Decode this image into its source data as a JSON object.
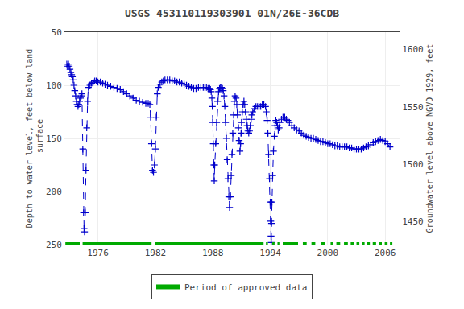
{
  "chart_data": {
    "type": "line",
    "title": "USGS 453110119303901 01N/26E-36CDB",
    "ylabel": "Depth to water level, feet below land\n surface",
    "y2label": "Groundwater level above NGVD 1929, feet",
    "xlim": [
      1972.5,
      2007.5
    ],
    "xticks": [
      1976,
      1982,
      1988,
      1994,
      2000,
      2006
    ],
    "ylim": [
      250,
      50
    ],
    "yticks": [
      50,
      100,
      150,
      200,
      250
    ],
    "y2lim": [
      1430,
      1615
    ],
    "y2ticks": [
      1450,
      1500,
      1550,
      1600
    ],
    "grid": true,
    "legend": "bottom",
    "series": [
      {
        "type": "line",
        "color": "#0000cc",
        "line_style": "dashed",
        "marker": "plus",
        "x": [
          1972.75,
          1972.83,
          1972.92,
          1973.0,
          1973.08,
          1973.17,
          1973.25,
          1973.33,
          1973.42,
          1973.5,
          1973.58,
          1973.67,
          1973.75,
          1973.83,
          1973.92,
          1974.0,
          1974.08,
          1974.17,
          1974.25,
          1974.33,
          1974.42,
          1974.5,
          1974.55,
          1974.6,
          1974.67,
          1974.75,
          1974.83,
          1974.92,
          1975.0,
          1975.17,
          1975.33,
          1975.5,
          1975.67,
          1975.83,
          1976.0,
          1976.25,
          1976.5,
          1976.75,
          1977.0,
          1977.33,
          1977.67,
          1978.0,
          1978.33,
          1978.67,
          1979.0,
          1979.33,
          1979.67,
          1980.0,
          1980.33,
          1980.67,
          1981.0,
          1981.25,
          1981.42,
          1981.5,
          1981.6,
          1981.7,
          1981.8,
          1981.9,
          1982.0,
          1982.1,
          1982.2,
          1982.3,
          1982.5,
          1982.67,
          1982.83,
          1983.0,
          1983.25,
          1983.5,
          1983.75,
          1984.0,
          1984.25,
          1984.5,
          1984.75,
          1985.0,
          1985.25,
          1985.5,
          1985.75,
          1986.0,
          1986.25,
          1986.5,
          1986.75,
          1987.0,
          1987.17,
          1987.33,
          1987.5,
          1987.67,
          1987.75,
          1987.83,
          1987.9,
          1987.95,
          1988.0,
          1988.05,
          1988.1,
          1988.15,
          1988.2,
          1988.3,
          1988.4,
          1988.5,
          1988.6,
          1988.7,
          1988.8,
          1988.9,
          1989.0,
          1989.08,
          1989.17,
          1989.25,
          1989.33,
          1989.42,
          1989.5,
          1989.58,
          1989.67,
          1989.75,
          1989.83,
          1989.92,
          1990.0,
          1990.08,
          1990.17,
          1990.25,
          1990.33,
          1990.42,
          1990.5,
          1990.58,
          1990.67,
          1990.75,
          1990.83,
          1990.9,
          1990.95,
          1991.0,
          1991.08,
          1991.17,
          1991.25,
          1991.33,
          1991.42,
          1991.5,
          1991.58,
          1991.67,
          1991.75,
          1991.83,
          1991.92,
          1992.0,
          1992.08,
          1992.17,
          1992.33,
          1992.5,
          1992.67,
          1992.83,
          1993.0,
          1993.17,
          1993.33,
          1993.5,
          1993.58,
          1993.67,
          1993.75,
          1993.83,
          1993.92,
          1994.0,
          1994.05,
          1994.08,
          1994.1,
          1994.13,
          1994.17,
          1994.25,
          1994.33,
          1994.42,
          1994.5,
          1994.58,
          1994.67,
          1994.75,
          1994.83,
          1994.92,
          1995.0,
          1995.17,
          1995.33,
          1995.5,
          1995.67,
          1995.83,
          1996.0,
          1996.25,
          1996.5,
          1996.75,
          1997.0,
          1997.25,
          1997.5,
          1997.75,
          1998.0,
          1998.25,
          1998.5,
          1998.75,
          1999.0,
          1999.25,
          1999.5,
          1999.75,
          2000.0,
          2000.25,
          2000.5,
          2000.75,
          2001.0,
          2001.25,
          2001.5,
          2001.75,
          2002.0,
          2002.25,
          2002.5,
          2002.75,
          2003.0,
          2003.25,
          2003.5,
          2003.75,
          2004.0,
          2004.25,
          2004.5,
          2004.75,
          2005.0,
          2005.25,
          2005.5,
          2005.75,
          2006.0,
          2006.25,
          2006.5
        ],
        "values": [
          80,
          82,
          80,
          82,
          85,
          88,
          90,
          92,
          95,
          100,
          105,
          110,
          115,
          118,
          120,
          118,
          115,
          112,
          110,
          108,
          160,
          220,
          235,
          238,
          220,
          180,
          140,
          115,
          102,
          100,
          98,
          97,
          96,
          96,
          97,
          97,
          98,
          99,
          100,
          101,
          102,
          103,
          104,
          106,
          108,
          110,
          112,
          114,
          115,
          116,
          117,
          117,
          118,
          130,
          155,
          180,
          182,
          175,
          160,
          130,
          108,
          102,
          99,
          97,
          96,
          95,
          95,
          95,
          96,
          96,
          97,
          97,
          98,
          99,
          100,
          101,
          102,
          103,
          103,
          102,
          102,
          102,
          102,
          102,
          103,
          103,
          104,
          106,
          112,
          120,
          135,
          155,
          175,
          190,
          175,
          155,
          135,
          115,
          106,
          103,
          102,
          102,
          103,
          105,
          110,
          120,
          135,
          150,
          170,
          188,
          205,
          215,
          205,
          185,
          165,
          145,
          128,
          115,
          110,
          112,
          118,
          128,
          140,
          152,
          162,
          155,
          145,
          135,
          125,
          118,
          115,
          118,
          125,
          132,
          138,
          143,
          145,
          143,
          138,
          132,
          128,
          125,
          122,
          120,
          120,
          120,
          120,
          118,
          118,
          120,
          125,
          133,
          145,
          165,
          188,
          210,
          228,
          242,
          248,
          230,
          210,
          185,
          162,
          148,
          138,
          133,
          135,
          138,
          142,
          140,
          135,
          132,
          130,
          130,
          132,
          133,
          135,
          138,
          140,
          142,
          143,
          145,
          147,
          148,
          149,
          150,
          150,
          151,
          152,
          153,
          153,
          154,
          155,
          155,
          156,
          157,
          157,
          158,
          158,
          158,
          158,
          159,
          159,
          160,
          160,
          160,
          160,
          159,
          158,
          157,
          156,
          154,
          153,
          152,
          151,
          152,
          153,
          155,
          158
        ]
      },
      {
        "type": "bar",
        "name": "Period of approved data",
        "color": "#00aa00",
        "ranges": [
          [
            1972.6,
            1974.1
          ],
          [
            1974.4,
            1981.6
          ],
          [
            1982.0,
            1993.3
          ],
          [
            1993.55,
            1993.75
          ],
          [
            1994.2,
            1994.45
          ],
          [
            1994.75,
            1994.95
          ],
          [
            1995.3,
            1996.9
          ],
          [
            1997.4,
            1997.8
          ],
          [
            1998.3,
            1998.7
          ],
          [
            1999.3,
            1999.75
          ],
          [
            2000.3,
            2000.6
          ],
          [
            2000.9,
            2001.3
          ],
          [
            2001.7,
            2002.1
          ],
          [
            2002.4,
            2002.75
          ],
          [
            2003.0,
            2003.3
          ],
          [
            2003.6,
            2003.85
          ],
          [
            2004.1,
            2004.4
          ],
          [
            2004.7,
            2005.05
          ],
          [
            2005.35,
            2005.65
          ],
          [
            2005.95,
            2006.25
          ],
          [
            2006.5,
            2006.75
          ]
        ],
        "values": [
          250,
          250,
          250,
          250,
          250,
          250,
          250,
          250,
          250,
          250,
          250,
          250,
          250,
          250,
          250,
          250,
          250,
          250,
          250,
          250,
          250
        ]
      }
    ]
  }
}
